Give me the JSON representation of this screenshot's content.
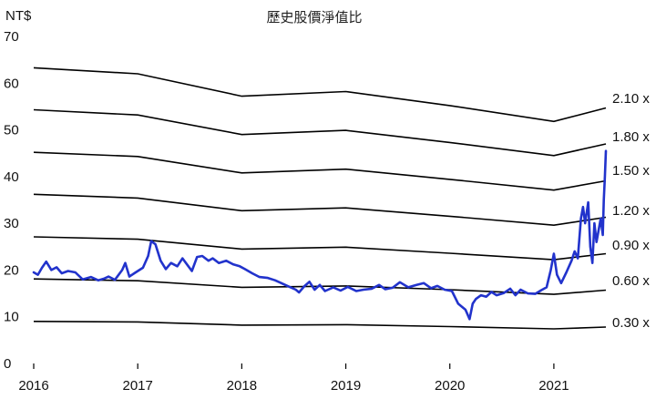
{
  "chart_data": {
    "type": "line",
    "title": "歷史股價淨值比",
    "ylabel": "NT$",
    "xlabel": "",
    "xlim": [
      2016,
      2021.5
    ],
    "ylim": [
      0,
      70
    ],
    "x_ticks": [
      "2016",
      "2017",
      "2018",
      "2019",
      "2020",
      "2021"
    ],
    "y_ticks": [
      "0",
      "10",
      "20",
      "30",
      "40",
      "50",
      "60",
      "70"
    ],
    "grid": false,
    "colors": {
      "price": "#2233cc",
      "bands": "#000000"
    },
    "band_x": [
      2016.0,
      2017.0,
      2018.0,
      2019.0,
      2020.0,
      2021.0,
      2021.5
    ],
    "bands": [
      {
        "name": "2.10 x",
        "values": [
          63.3,
          62.0,
          57.2,
          58.2,
          55.2,
          51.8,
          54.7
        ]
      },
      {
        "name": "1.80 x",
        "values": [
          54.3,
          53.2,
          49.0,
          49.9,
          47.3,
          44.5,
          47.0
        ]
      },
      {
        "name": "1.50 x",
        "values": [
          45.2,
          44.3,
          40.8,
          41.6,
          39.4,
          37.1,
          39.1
        ]
      },
      {
        "name": "1.20 x",
        "values": [
          36.2,
          35.4,
          32.7,
          33.3,
          31.5,
          29.6,
          31.3
        ]
      },
      {
        "name": "0.90 x",
        "values": [
          27.1,
          26.6,
          24.5,
          24.9,
          23.6,
          22.2,
          23.5
        ]
      },
      {
        "name": "0.60 x",
        "values": [
          18.1,
          17.7,
          16.3,
          16.6,
          15.8,
          14.8,
          15.7
        ]
      },
      {
        "name": "0.30 x",
        "values": [
          9.0,
          8.9,
          8.2,
          8.3,
          7.9,
          7.4,
          7.8
        ]
      }
    ],
    "price": {
      "x": [
        2016.0,
        2016.04,
        2016.08,
        2016.12,
        2016.17,
        2016.22,
        2016.27,
        2016.33,
        2016.4,
        2016.47,
        2016.55,
        2016.62,
        2016.68,
        2016.72,
        2016.78,
        2016.85,
        2016.88,
        2016.92,
        2016.98,
        2017.05,
        2017.1,
        2017.13,
        2017.17,
        2017.22,
        2017.27,
        2017.32,
        2017.38,
        2017.43,
        2017.48,
        2017.52,
        2017.57,
        2017.62,
        2017.68,
        2017.72,
        2017.78,
        2017.85,
        2017.92,
        2017.98,
        2018.03,
        2018.1,
        2018.17,
        2018.25,
        2018.32,
        2018.38,
        2018.45,
        2018.52,
        2018.55,
        2018.6,
        2018.65,
        2018.7,
        2018.75,
        2018.8,
        2018.88,
        2018.95,
        2019.02,
        2019.1,
        2019.17,
        2019.25,
        2019.32,
        2019.38,
        2019.45,
        2019.52,
        2019.6,
        2019.68,
        2019.75,
        2019.82,
        2019.88,
        2019.95,
        2020.02,
        2020.08,
        2020.15,
        2020.19,
        2020.22,
        2020.25,
        2020.3,
        2020.35,
        2020.4,
        2020.45,
        2020.52,
        2020.58,
        2020.63,
        2020.68,
        2020.75,
        2020.82,
        2020.88,
        2020.93,
        2020.97,
        2021.0,
        2021.03,
        2021.07,
        2021.12,
        2021.17,
        2021.2,
        2021.23,
        2021.26,
        2021.28,
        2021.3,
        2021.33,
        2021.35,
        2021.37,
        2021.39,
        2021.41,
        2021.43,
        2021.45,
        2021.47,
        2021.48,
        2021.49,
        2021.5
      ],
      "values": [
        19.5,
        19.0,
        20.5,
        21.8,
        20.0,
        20.6,
        19.3,
        19.8,
        19.5,
        18.0,
        18.5,
        17.8,
        18.2,
        18.6,
        17.9,
        20.0,
        21.5,
        18.6,
        19.5,
        20.5,
        23.0,
        26.2,
        25.5,
        22.0,
        20.2,
        21.5,
        20.8,
        22.5,
        21.0,
        19.8,
        22.8,
        23.0,
        22.0,
        22.5,
        21.5,
        22.0,
        21.2,
        20.8,
        20.2,
        19.3,
        18.5,
        18.3,
        17.8,
        17.2,
        16.5,
        15.8,
        15.2,
        16.5,
        17.5,
        15.8,
        16.8,
        15.5,
        16.3,
        15.6,
        16.4,
        15.5,
        15.8,
        16.0,
        16.8,
        15.9,
        16.2,
        17.4,
        16.3,
        16.8,
        17.2,
        16.1,
        16.6,
        15.8,
        15.5,
        12.8,
        11.5,
        9.5,
        12.8,
        13.8,
        14.6,
        14.3,
        15.3,
        14.6,
        15.1,
        16.0,
        14.6,
        15.8,
        15.0,
        14.9,
        15.7,
        16.3,
        20.0,
        23.5,
        19.0,
        17.2,
        19.5,
        22.0,
        24.0,
        22.5,
        31.0,
        33.5,
        30.0,
        34.5,
        25.0,
        21.5,
        30.0,
        26.0,
        28.5,
        31.0,
        27.5,
        35.0,
        40.0,
        45.5
      ]
    }
  }
}
